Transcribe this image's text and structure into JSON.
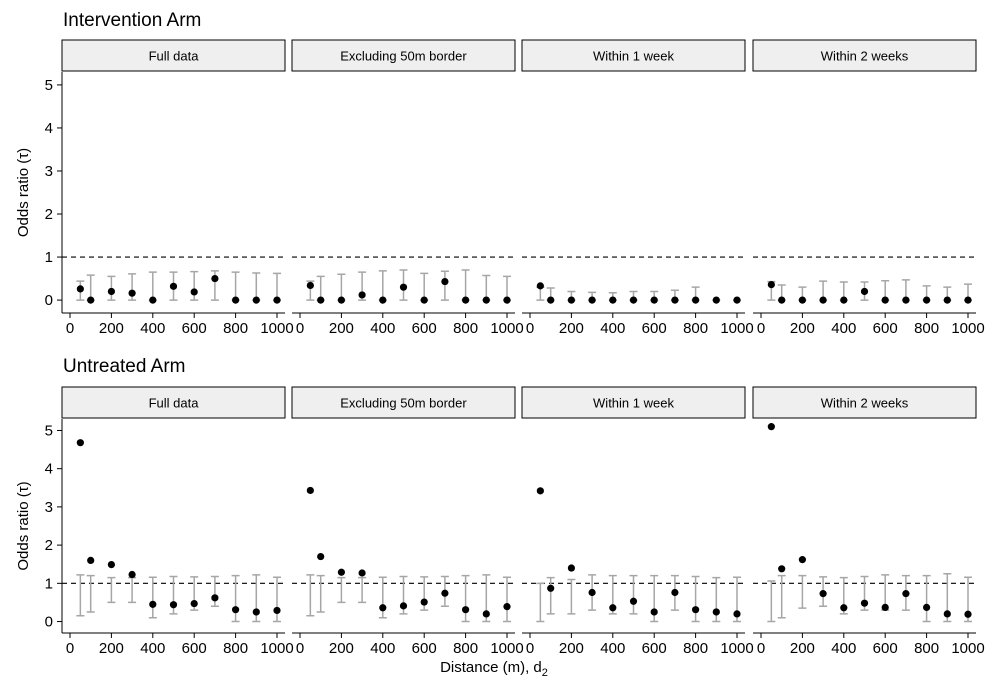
{
  "x_axis_title": "Distance (m), d",
  "x_axis_title_subscript": "2",
  "chart_data": [
    {
      "type": "scatter",
      "row_title": "Intervention Arm",
      "ylabel": "Odds ratio (τ)",
      "ylim": [
        -0.3,
        5.3
      ],
      "yticks": [
        0,
        1,
        2,
        3,
        4,
        5
      ],
      "xlim": [
        0,
        1000
      ],
      "xticks": [
        0,
        200,
        400,
        600,
        800,
        1000
      ],
      "reference_line": 1,
      "grid": false,
      "panels": [
        {
          "label": "Full data",
          "x": [
            50,
            100,
            200,
            300,
            400,
            500,
            600,
            700,
            800,
            900,
            1000
          ],
          "y": [
            0.26,
            0.0,
            0.2,
            0.16,
            0.0,
            0.32,
            0.19,
            0.5,
            0.0,
            0.0,
            0.0
          ],
          "ci_low": [
            0.0,
            0.0,
            0.0,
            0.0,
            0.0,
            0.0,
            0.0,
            0.0,
            0.0,
            0.0,
            0.0
          ],
          "ci_high": [
            0.44,
            0.58,
            0.55,
            0.61,
            0.65,
            0.65,
            0.66,
            0.68,
            0.65,
            0.63,
            0.62
          ]
        },
        {
          "label": "Excluding 50m border",
          "x": [
            50,
            100,
            200,
            300,
            400,
            500,
            600,
            700,
            800,
            900,
            1000
          ],
          "y": [
            0.34,
            0.0,
            0.0,
            0.12,
            0.0,
            0.3,
            0.0,
            0.43,
            0.0,
            0.0,
            0.0
          ],
          "ci_low": [
            0.0,
            0.0,
            0.0,
            0.0,
            0.0,
            0.0,
            0.0,
            0.0,
            0.0,
            0.0,
            0.0
          ],
          "ci_high": [
            0.44,
            0.55,
            0.6,
            0.65,
            0.68,
            0.7,
            0.62,
            0.67,
            0.7,
            0.57,
            0.55
          ]
        },
        {
          "label": "Within 1 week",
          "x": [
            50,
            100,
            200,
            300,
            400,
            500,
            600,
            700,
            800,
            900,
            1000
          ],
          "y": [
            0.33,
            0.0,
            0.0,
            0.0,
            0.0,
            0.0,
            0.0,
            0.0,
            0.0,
            0.0,
            0.0
          ],
          "ci_low": [
            0.0,
            0.0,
            0.0,
            0.0,
            0.0,
            0.0,
            0.0,
            0.0,
            0.0,
            0.0,
            0.0
          ],
          "ci_high": [
            0.3,
            0.28,
            0.2,
            0.18,
            0.17,
            0.2,
            0.2,
            0.23,
            0.3,
            0.0,
            0.0
          ]
        },
        {
          "label": "Within 2 weeks",
          "x": [
            50,
            100,
            200,
            300,
            400,
            500,
            600,
            700,
            800,
            900,
            1000
          ],
          "y": [
            0.36,
            0.0,
            0.0,
            0.0,
            0.0,
            0.2,
            0.0,
            0.0,
            0.0,
            0.0,
            0.0
          ],
          "ci_low": [
            0.0,
            0.0,
            0.0,
            0.0,
            0.0,
            0.0,
            0.0,
            0.0,
            0.0,
            0.0,
            0.0
          ],
          "ci_high": [
            0.43,
            0.35,
            0.3,
            0.44,
            0.42,
            0.42,
            0.45,
            0.47,
            0.33,
            0.3,
            0.37
          ]
        }
      ]
    },
    {
      "type": "scatter",
      "row_title": "Untreated Arm",
      "ylabel": "Odds ratio (τ)",
      "ylim": [
        -0.3,
        5.3
      ],
      "yticks": [
        0,
        1,
        2,
        3,
        4,
        5
      ],
      "xlim": [
        0,
        1000
      ],
      "xticks": [
        0,
        200,
        400,
        600,
        800,
        1000
      ],
      "reference_line": 1,
      "grid": false,
      "panels": [
        {
          "label": "Full data",
          "x": [
            50,
            100,
            200,
            300,
            400,
            500,
            600,
            700,
            800,
            900,
            1000
          ],
          "y": [
            4.68,
            1.6,
            1.49,
            1.23,
            0.45,
            0.44,
            0.47,
            0.62,
            0.31,
            0.25,
            0.29
          ],
          "ci_low": [
            0.15,
            0.25,
            0.5,
            0.5,
            0.1,
            0.2,
            0.3,
            0.4,
            0.0,
            0.0,
            0.0
          ],
          "ci_high": [
            1.22,
            1.2,
            1.15,
            1.15,
            1.16,
            1.18,
            1.17,
            1.18,
            1.2,
            1.22,
            1.16
          ]
        },
        {
          "label": "Excluding 50m border",
          "x": [
            50,
            100,
            200,
            300,
            400,
            500,
            600,
            700,
            800,
            900,
            1000
          ],
          "y": [
            3.43,
            1.7,
            1.29,
            1.27,
            0.36,
            0.41,
            0.51,
            0.74,
            0.31,
            0.2,
            0.39
          ],
          "ci_low": [
            0.15,
            0.25,
            0.5,
            0.5,
            0.1,
            0.2,
            0.3,
            0.4,
            0.0,
            0.0,
            0.0
          ],
          "ci_high": [
            1.22,
            1.2,
            1.15,
            1.15,
            1.16,
            1.18,
            1.17,
            1.18,
            1.2,
            1.22,
            1.16
          ]
        },
        {
          "label": "Within 1 week",
          "x": [
            50,
            100,
            200,
            300,
            400,
            500,
            600,
            700,
            800,
            900,
            1000
          ],
          "y": [
            3.42,
            0.87,
            1.4,
            0.76,
            0.36,
            0.53,
            0.25,
            0.76,
            0.31,
            0.25,
            0.2
          ],
          "ci_low": [
            0.0,
            0.2,
            0.2,
            0.3,
            0.2,
            0.2,
            0.0,
            0.3,
            0.0,
            0.0,
            0.0
          ],
          "ci_high": [
            1.0,
            1.15,
            1.1,
            1.22,
            1.2,
            1.2,
            1.2,
            1.2,
            1.18,
            1.15,
            1.16
          ]
        },
        {
          "label": "Within 2 weeks",
          "x": [
            50,
            100,
            200,
            300,
            400,
            500,
            600,
            700,
            800,
            900,
            1000
          ],
          "y": [
            5.1,
            1.38,
            1.62,
            0.73,
            0.36,
            0.48,
            0.37,
            0.73,
            0.37,
            0.2,
            0.19
          ],
          "ci_low": [
            0.0,
            0.1,
            0.35,
            0.4,
            0.2,
            0.3,
            0.3,
            0.3,
            0.0,
            0.0,
            0.0
          ],
          "ci_high": [
            1.06,
            1.2,
            1.2,
            1.17,
            1.15,
            1.18,
            1.22,
            1.2,
            1.2,
            1.25,
            1.16
          ]
        }
      ]
    }
  ]
}
